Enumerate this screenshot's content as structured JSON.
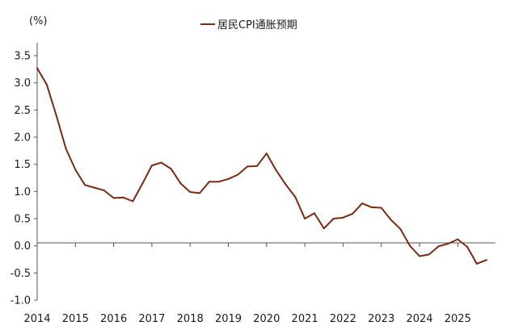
{
  "chart_data": {
    "type": "line",
    "title": "",
    "ylabel": "(%)",
    "xlabel": "",
    "ylim": [
      -1.0,
      3.5
    ],
    "yticks": [
      "3.5",
      "3.0",
      "2.5",
      "2.0",
      "1.5",
      "1.0",
      "0.5",
      "0.0",
      "-0.5",
      "-1.0"
    ],
    "xticks": [
      "2014",
      "2015",
      "2016",
      "2017",
      "2018",
      "2019",
      "2020",
      "2021",
      "2022",
      "2023",
      "2024",
      "2025"
    ],
    "legend": "top-center",
    "grid": false,
    "color": "#7b2a12",
    "series": [
      {
        "name": "居民CPI通胀预期",
        "x": [
          2014.0,
          2014.25,
          2014.5,
          2014.75,
          2015.0,
          2015.25,
          2015.5,
          2015.75,
          2016.0,
          2016.25,
          2016.5,
          2016.75,
          2017.0,
          2017.25,
          2017.5,
          2017.75,
          2018.0,
          2018.25,
          2018.5,
          2018.75,
          2019.0,
          2019.25,
          2019.5,
          2019.75,
          2020.0,
          2020.25,
          2020.5,
          2020.75,
          2021.0,
          2021.25,
          2021.5,
          2021.75,
          2022.0,
          2022.25,
          2022.5,
          2022.75,
          2023.0,
          2023.25,
          2023.5,
          2023.75,
          2024.0,
          2024.25,
          2024.5,
          2024.75,
          2025.0,
          2025.25,
          2025.5,
          2025.75
        ],
        "values": [
          3.27,
          2.97,
          2.4,
          1.79,
          1.4,
          1.12,
          1.07,
          1.02,
          0.88,
          0.89,
          0.82,
          1.14,
          1.48,
          1.53,
          1.42,
          1.15,
          0.99,
          0.97,
          1.18,
          1.18,
          1.23,
          1.31,
          1.46,
          1.47,
          1.7,
          1.39,
          1.13,
          0.9,
          0.5,
          0.6,
          0.32,
          0.5,
          0.52,
          0.59,
          0.78,
          0.71,
          0.7,
          0.48,
          0.31,
          0.0,
          -0.19,
          -0.16,
          -0.01,
          0.04,
          0.12,
          -0.02,
          -0.33,
          -0.26
        ]
      }
    ]
  }
}
